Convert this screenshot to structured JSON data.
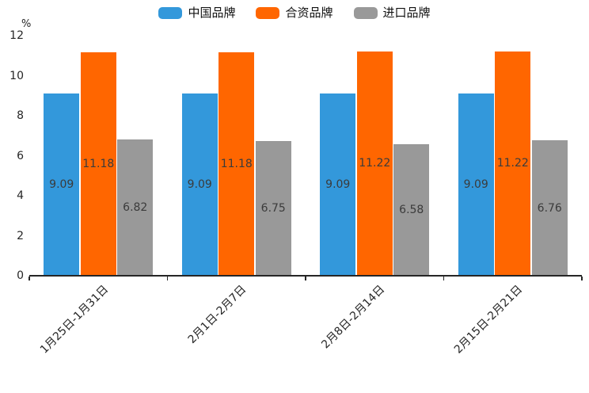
{
  "chart_data": {
    "type": "bar",
    "title": "",
    "unit_label": "%",
    "categories": [
      "1月25日-1月31日",
      "2月1日-2月7日",
      "2月8日-2月14日",
      "2月15日-2月21日"
    ],
    "series": [
      {
        "name": "中国品牌",
        "color": "#3398DB",
        "values": [
          9.09,
          9.09,
          9.09,
          9.09
        ]
      },
      {
        "name": "合资品牌",
        "color": "#FF6600",
        "values": [
          11.18,
          11.18,
          11.22,
          11.22
        ]
      },
      {
        "name": "进口品牌",
        "color": "#999999",
        "values": [
          6.82,
          6.75,
          6.58,
          6.76
        ]
      }
    ],
    "value_labels": [
      [
        "9.09",
        "11.18",
        "6.82"
      ],
      [
        "9.09",
        "11.18",
        "6.75"
      ],
      [
        "9.09",
        "11.22",
        "6.58"
      ],
      [
        "9.09",
        "11.22",
        "6.76"
      ]
    ],
    "ylim": [
      0,
      12
    ],
    "yticks": [
      0,
      2,
      4,
      6,
      8,
      10,
      12
    ],
    "legend_position": "top",
    "grid": false,
    "axis_color": "#262626",
    "label_color": "#3b3b3b"
  }
}
